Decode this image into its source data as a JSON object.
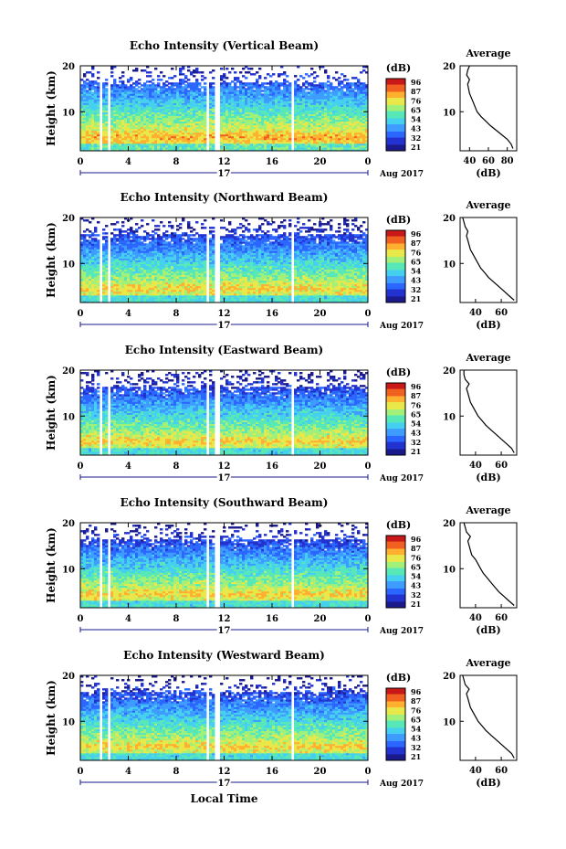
{
  "colors": {
    "colormap": [
      "#1a1a8c",
      "#2233d0",
      "#2b67ff",
      "#3f9cff",
      "#46d0f0",
      "#58e8b8",
      "#a0f07a",
      "#e8e84a",
      "#ffb030",
      "#f06020",
      "#c81818"
    ]
  },
  "shared": {
    "ylabel": "Height (km)",
    "avg_title": "Average",
    "avg_xlabel": "(dB)",
    "cbar_unit": "(dB)",
    "cbar_ticks": [
      "96",
      "87",
      "76",
      "65",
      "54",
      "43",
      "32",
      "21"
    ],
    "date_label": "Aug 2017",
    "day_label": "17",
    "xlabel": "Local Time"
  },
  "chart_data": [
    {
      "type": "heatmap",
      "title": "Echo Intensity (Vertical Beam)",
      "x_ticks": [
        "0",
        "4",
        "8",
        "12",
        "16",
        "20",
        "0"
      ],
      "y_ticks": [
        "20",
        "10"
      ],
      "ylim": [
        1.5,
        20
      ],
      "xlim": [
        0,
        24
      ],
      "colorbar": [
        21,
        96
      ],
      "missing_times": [
        [
          1.5,
          1.75
        ],
        [
          2.3,
          2.5
        ],
        [
          10.5,
          10.85
        ],
        [
          11.3,
          11.55
        ],
        [
          17.5,
          17.8
        ]
      ],
      "average_profile": {
        "x_ticks": [
          "40",
          "60",
          "80"
        ],
        "y_ticks": [
          "20",
          "10"
        ],
        "xlim": [
          30,
          90
        ],
        "x": [
          86,
          84,
          80,
          74,
          68,
          62,
          57,
          52,
          48,
          46,
          44,
          42,
          40,
          39,
          38,
          40,
          37,
          38,
          40
        ],
        "y": [
          2,
          3,
          4,
          5,
          6,
          7,
          8,
          9,
          10,
          11,
          12,
          13,
          14,
          15,
          16,
          17,
          18,
          19,
          20
        ]
      }
    },
    {
      "type": "heatmap",
      "title": "Echo Intensity (Northward Beam)",
      "x_ticks": [
        "0",
        "4",
        "8",
        "12",
        "16",
        "20",
        "0"
      ],
      "y_ticks": [
        "20",
        "10"
      ],
      "ylim": [
        1.5,
        20
      ],
      "xlim": [
        0,
        24
      ],
      "colorbar": [
        21,
        96
      ],
      "missing_times": [
        [
          1.5,
          1.75
        ],
        [
          2.3,
          2.5
        ],
        [
          10.5,
          10.85
        ],
        [
          11.3,
          11.55
        ],
        [
          17.5,
          17.8
        ]
      ],
      "average_profile": {
        "x_ticks": [
          "40",
          "60"
        ],
        "y_ticks": [
          "20",
          "10"
        ],
        "xlim": [
          28,
          72
        ],
        "x": [
          70,
          66,
          62,
          58,
          54,
          50,
          47,
          44,
          42,
          40,
          38,
          36,
          35,
          34,
          33,
          34,
          32,
          31,
          30
        ],
        "y": [
          2,
          3,
          4,
          5,
          6,
          7,
          8,
          9,
          10,
          11,
          12,
          13,
          14,
          15,
          16,
          17,
          18,
          19,
          20
        ]
      }
    },
    {
      "type": "heatmap",
      "title": "Echo Intensity (Eastward Beam)",
      "x_ticks": [
        "0",
        "4",
        "8",
        "12",
        "16",
        "20",
        "0"
      ],
      "y_ticks": [
        "20",
        "10"
      ],
      "ylim": [
        1.5,
        20
      ],
      "xlim": [
        0,
        24
      ],
      "colorbar": [
        21,
        96
      ],
      "missing_times": [
        [
          1.5,
          1.75
        ],
        [
          2.3,
          2.5
        ],
        [
          10.5,
          10.85
        ],
        [
          11.3,
          11.55
        ],
        [
          17.5,
          17.8
        ]
      ],
      "average_profile": {
        "x_ticks": [
          "40",
          "60"
        ],
        "y_ticks": [
          "20",
          "10"
        ],
        "xlim": [
          28,
          72
        ],
        "x": [
          70,
          68,
          64,
          60,
          56,
          52,
          48,
          45,
          42,
          40,
          38,
          36,
          35,
          34,
          33,
          35,
          32,
          31,
          31
        ],
        "y": [
          2,
          3,
          4,
          5,
          6,
          7,
          8,
          9,
          10,
          11,
          12,
          13,
          14,
          15,
          16,
          17,
          18,
          19,
          20
        ]
      }
    },
    {
      "type": "heatmap",
      "title": "Echo Intensity (Southward Beam)",
      "x_ticks": [
        "0",
        "4",
        "8",
        "12",
        "16",
        "20",
        "0"
      ],
      "y_ticks": [
        "20",
        "10"
      ],
      "ylim": [
        1.5,
        20
      ],
      "xlim": [
        0,
        24
      ],
      "colorbar": [
        21,
        96
      ],
      "missing_times": [
        [
          1.5,
          1.75
        ],
        [
          2.3,
          2.5
        ],
        [
          10.5,
          10.85
        ],
        [
          11.3,
          11.55
        ],
        [
          17.5,
          17.8
        ]
      ],
      "average_profile": {
        "x_ticks": [
          "40",
          "60"
        ],
        "y_ticks": [
          "20",
          "10"
        ],
        "xlim": [
          28,
          72
        ],
        "x": [
          70,
          66,
          62,
          58,
          55,
          52,
          49,
          46,
          44,
          42,
          40,
          37,
          36,
          35,
          34,
          36,
          33,
          32,
          31
        ],
        "y": [
          2,
          3,
          4,
          5,
          6,
          7,
          8,
          9,
          10,
          11,
          12,
          13,
          14,
          15,
          16,
          17,
          18,
          19,
          20
        ]
      }
    },
    {
      "type": "heatmap",
      "title": "Echo Intensity (Westward Beam)",
      "x_ticks": [
        "0",
        "4",
        "8",
        "12",
        "16",
        "20",
        "0"
      ],
      "y_ticks": [
        "20",
        "10"
      ],
      "ylim": [
        1.5,
        20
      ],
      "xlim": [
        0,
        24
      ],
      "colorbar": [
        21,
        96
      ],
      "missing_times": [
        [
          1.5,
          1.75
        ],
        [
          2.3,
          2.5
        ],
        [
          10.5,
          10.85
        ],
        [
          11.3,
          11.55
        ],
        [
          17.5,
          17.8
        ]
      ],
      "average_profile": {
        "x_ticks": [
          "40",
          "60"
        ],
        "y_ticks": [
          "20",
          "10"
        ],
        "xlim": [
          28,
          72
        ],
        "x": [
          70,
          68,
          64,
          60,
          56,
          52,
          48,
          45,
          42,
          40,
          38,
          36,
          35,
          34,
          33,
          35,
          32,
          31,
          30
        ],
        "y": [
          2,
          3,
          4,
          5,
          6,
          7,
          8,
          9,
          10,
          11,
          12,
          13,
          14,
          15,
          16,
          17,
          18,
          19,
          20
        ]
      }
    }
  ]
}
